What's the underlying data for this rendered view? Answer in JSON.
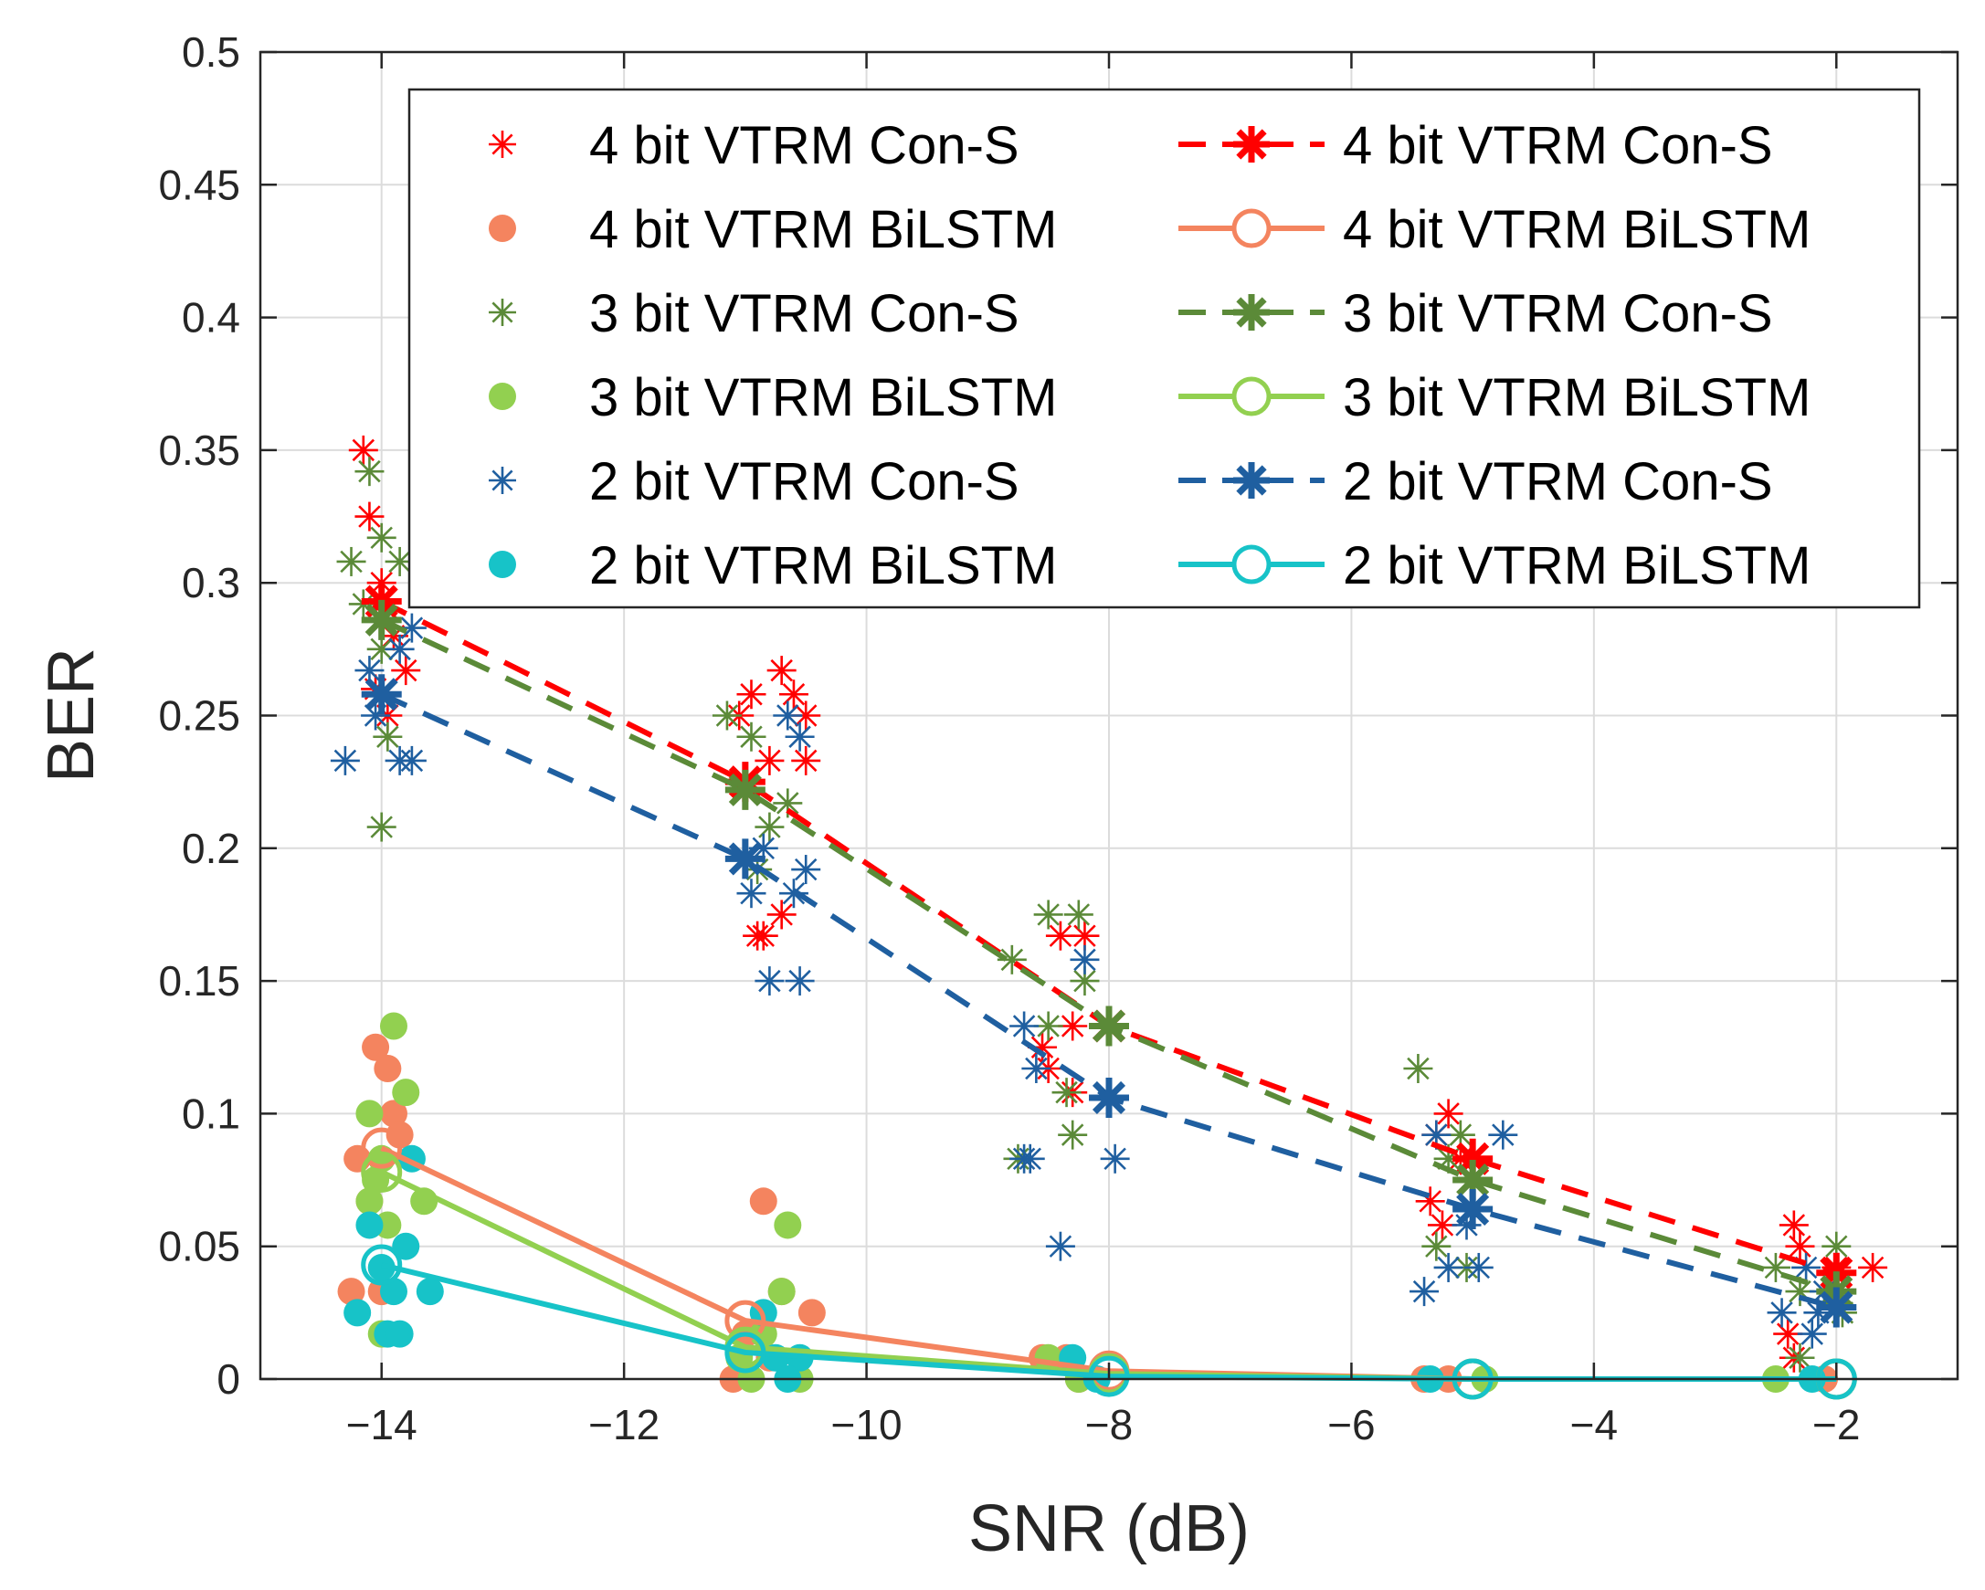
{
  "chart_data": {
    "type": "scatter",
    "title": "",
    "xlabel": "SNR (dB)",
    "ylabel": "BER",
    "xlim": [
      -15,
      -1
    ],
    "ylim": [
      0,
      0.5
    ],
    "grid": true,
    "legend_position": "top-right",
    "x_ticks": [
      -14,
      -12,
      -10,
      -8,
      -6,
      -4,
      -2
    ],
    "x_tick_labels": [
      "−14",
      "−12",
      "−10",
      "−8",
      "−6",
      "−4",
      "−2"
    ],
    "y_ticks": [
      0,
      0.05,
      0.1,
      0.15,
      0.2,
      0.25,
      0.3,
      0.35,
      0.4,
      0.45,
      0.5
    ],
    "y_tick_labels": [
      "0",
      "0.05",
      "0.1",
      "0.15",
      "0.2",
      "0.25",
      "0.3",
      "0.35",
      "0.4",
      "0.45",
      "0.5"
    ],
    "x": [
      -14,
      -11,
      -8,
      -5,
      -2
    ],
    "series": [
      {
        "name": "4 bit VTRM Con-S",
        "key": "con4",
        "color": "#ff0000",
        "marker": "asterisk",
        "style": "scatter",
        "points": [
          [
            -14.15,
            0.35
          ],
          [
            -14.1,
            0.325
          ],
          [
            -14.0,
            0.3
          ],
          [
            -13.95,
            0.29
          ],
          [
            -13.9,
            0.28
          ],
          [
            -13.8,
            0.267
          ],
          [
            -14.05,
            0.26
          ],
          [
            -13.95,
            0.25
          ],
          [
            -11.05,
            0.25
          ],
          [
            -10.95,
            0.258
          ],
          [
            -10.8,
            0.233
          ],
          [
            -10.7,
            0.267
          ],
          [
            -10.6,
            0.258
          ],
          [
            -10.5,
            0.25
          ],
          [
            -10.5,
            0.233
          ],
          [
            -10.9,
            0.167
          ],
          [
            -10.85,
            0.167
          ],
          [
            -10.7,
            0.175
          ],
          [
            -8.4,
            0.167
          ],
          [
            -8.3,
            0.133
          ],
          [
            -8.2,
            0.167
          ],
          [
            -8.55,
            0.125
          ],
          [
            -8.5,
            0.117
          ],
          [
            -8.3,
            0.108
          ],
          [
            -5.3,
            0.092
          ],
          [
            -5.2,
            0.1
          ],
          [
            -5.1,
            0.083
          ],
          [
            -5.35,
            0.067
          ],
          [
            -5.25,
            0.058
          ],
          [
            -2.35,
            0.058
          ],
          [
            -2.3,
            0.05
          ],
          [
            -2.0,
            0.042
          ],
          [
            -1.7,
            0.042
          ],
          [
            -2.4,
            0.017
          ],
          [
            -2.35,
            0.008
          ]
        ]
      },
      {
        "name": "4 bit VTRM BiLSTM",
        "key": "bi4",
        "color": "#f4845f",
        "marker": "dot",
        "style": "scatter",
        "points": [
          [
            -14.2,
            0.083
          ],
          [
            -14.05,
            0.125
          ],
          [
            -13.95,
            0.117
          ],
          [
            -13.9,
            0.1
          ],
          [
            -13.85,
            0.092
          ],
          [
            -14.1,
            0.067
          ],
          [
            -14.0,
            0.033
          ],
          [
            -14.25,
            0.033
          ],
          [
            -10.85,
            0.067
          ],
          [
            -10.45,
            0.025
          ],
          [
            -10.7,
            0.033
          ],
          [
            -11.0,
            0.017
          ],
          [
            -10.8,
            0.008
          ],
          [
            -11.1,
            0.0
          ],
          [
            -8.55,
            0.008
          ],
          [
            -8.35,
            0.008
          ],
          [
            -8.25,
            0.0
          ],
          [
            -5.4,
            0.0
          ],
          [
            -5.2,
            0.0
          ],
          [
            -2.1,
            0.0
          ]
        ]
      },
      {
        "name": "3 bit VTRM Con-S",
        "key": "con3",
        "color": "#5b8a38",
        "marker": "asterisk",
        "style": "scatter",
        "points": [
          [
            -14.1,
            0.342
          ],
          [
            -14.0,
            0.317
          ],
          [
            -13.85,
            0.308
          ],
          [
            -14.25,
            0.308
          ],
          [
            -14.15,
            0.292
          ],
          [
            -14.0,
            0.275
          ],
          [
            -13.95,
            0.242
          ],
          [
            -14.0,
            0.208
          ],
          [
            -11.15,
            0.25
          ],
          [
            -10.95,
            0.242
          ],
          [
            -10.65,
            0.217
          ],
          [
            -10.8,
            0.208
          ],
          [
            -10.9,
            0.192
          ],
          [
            -8.8,
            0.158
          ],
          [
            -8.5,
            0.175
          ],
          [
            -8.25,
            0.175
          ],
          [
            -8.2,
            0.15
          ],
          [
            -8.5,
            0.133
          ],
          [
            -8.35,
            0.108
          ],
          [
            -8.75,
            0.083
          ],
          [
            -8.3,
            0.092
          ],
          [
            -5.45,
            0.117
          ],
          [
            -5.1,
            0.092
          ],
          [
            -5.2,
            0.083
          ],
          [
            -5.3,
            0.05
          ],
          [
            -5.05,
            0.042
          ],
          [
            -2.5,
            0.042
          ],
          [
            -2.0,
            0.05
          ],
          [
            -2.3,
            0.033
          ],
          [
            -1.95,
            0.025
          ],
          [
            -2.3,
            0.008
          ]
        ]
      },
      {
        "name": "3 bit VTRM BiLSTM",
        "key": "bi3",
        "color": "#92d050",
        "marker": "dot",
        "style": "scatter",
        "points": [
          [
            -13.9,
            0.133
          ],
          [
            -14.1,
            0.1
          ],
          [
            -13.8,
            0.108
          ],
          [
            -14.0,
            0.083
          ],
          [
            -14.05,
            0.075
          ],
          [
            -14.1,
            0.067
          ],
          [
            -13.65,
            0.067
          ],
          [
            -13.95,
            0.058
          ],
          [
            -14.0,
            0.017
          ],
          [
            -10.65,
            0.058
          ],
          [
            -10.7,
            0.033
          ],
          [
            -10.85,
            0.017
          ],
          [
            -11.05,
            0.008
          ],
          [
            -10.95,
            0.0
          ],
          [
            -10.55,
            0.0
          ],
          [
            -8.5,
            0.008
          ],
          [
            -8.25,
            0.0
          ],
          [
            -4.9,
            0.0
          ],
          [
            -2.5,
            0.0
          ]
        ]
      },
      {
        "name": "2 bit VTRM Con-S",
        "key": "con2",
        "color": "#1f5fa0",
        "marker": "asterisk",
        "style": "scatter",
        "points": [
          [
            -14.3,
            0.233
          ],
          [
            -14.1,
            0.267
          ],
          [
            -14.0,
            0.258
          ],
          [
            -14.05,
            0.25
          ],
          [
            -13.85,
            0.275
          ],
          [
            -13.75,
            0.283
          ],
          [
            -13.85,
            0.233
          ],
          [
            -13.75,
            0.233
          ],
          [
            -10.85,
            0.2
          ],
          [
            -10.95,
            0.183
          ],
          [
            -10.65,
            0.25
          ],
          [
            -10.55,
            0.242
          ],
          [
            -10.5,
            0.192
          ],
          [
            -10.6,
            0.183
          ],
          [
            -10.8,
            0.15
          ],
          [
            -10.55,
            0.15
          ],
          [
            -8.7,
            0.133
          ],
          [
            -8.6,
            0.117
          ],
          [
            -8.2,
            0.158
          ],
          [
            -8.7,
            0.083
          ],
          [
            -8.65,
            0.083
          ],
          [
            -7.95,
            0.083
          ],
          [
            -8.4,
            0.05
          ],
          [
            -5.3,
            0.092
          ],
          [
            -4.75,
            0.092
          ],
          [
            -5.2,
            0.042
          ],
          [
            -5.4,
            0.033
          ],
          [
            -4.95,
            0.042
          ],
          [
            -5.05,
            0.058
          ],
          [
            -2.45,
            0.025
          ],
          [
            -2.25,
            0.042
          ],
          [
            -2.15,
            0.025
          ],
          [
            -2.2,
            0.017
          ],
          [
            -2.1,
            0.033
          ]
        ]
      },
      {
        "name": "2 bit VTRM BiLSTM",
        "key": "bi2",
        "color": "#17c3c8",
        "marker": "dot",
        "style": "scatter",
        "points": [
          [
            -14.1,
            0.058
          ],
          [
            -13.75,
            0.083
          ],
          [
            -13.8,
            0.05
          ],
          [
            -14.0,
            0.042
          ],
          [
            -13.9,
            0.033
          ],
          [
            -13.6,
            0.033
          ],
          [
            -14.2,
            0.025
          ],
          [
            -13.95,
            0.017
          ],
          [
            -13.85,
            0.017
          ],
          [
            -10.85,
            0.025
          ],
          [
            -10.75,
            0.008
          ],
          [
            -10.55,
            0.008
          ],
          [
            -10.65,
            0.0
          ],
          [
            -8.3,
            0.008
          ],
          [
            -8.1,
            0.0
          ],
          [
            -5.35,
            0.0
          ],
          [
            -2.2,
            0.0
          ]
        ]
      },
      {
        "name": "4 bit VTRM Con-S",
        "key": "con4m",
        "color": "#ff0000",
        "marker": "asterisk",
        "style": "dashed",
        "points": [
          [
            -14,
            0.293
          ],
          [
            -11,
            0.225
          ],
          [
            -8,
            0.133
          ],
          [
            -5,
            0.083
          ],
          [
            -2,
            0.04
          ]
        ]
      },
      {
        "name": "4 bit VTRM BiLSTM",
        "key": "bi4m",
        "color": "#f4845f",
        "marker": "circle",
        "style": "solid",
        "points": [
          [
            -14,
            0.087
          ],
          [
            -11,
            0.022
          ],
          [
            -8,
            0.003
          ],
          [
            -5,
            0.0
          ],
          [
            -2,
            0.0
          ]
        ]
      },
      {
        "name": "3 bit VTRM Con-S",
        "key": "con3m",
        "color": "#5b8a38",
        "marker": "asterisk",
        "style": "dashed",
        "points": [
          [
            -14,
            0.286
          ],
          [
            -11,
            0.222
          ],
          [
            -8,
            0.133
          ],
          [
            -5,
            0.075
          ],
          [
            -2,
            0.033
          ]
        ]
      },
      {
        "name": "3 bit VTRM BiLSTM",
        "key": "bi3m",
        "color": "#92d050",
        "marker": "circle",
        "style": "solid",
        "points": [
          [
            -14,
            0.078
          ],
          [
            -11,
            0.012
          ],
          [
            -8,
            0.002
          ],
          [
            -5,
            0.0
          ],
          [
            -2,
            0.0
          ]
        ]
      },
      {
        "name": "2 bit VTRM Con-S",
        "key": "con2m",
        "color": "#1f5fa0",
        "marker": "asterisk",
        "style": "dashed",
        "points": [
          [
            -14,
            0.258
          ],
          [
            -11,
            0.196
          ],
          [
            -8,
            0.106
          ],
          [
            -5,
            0.064
          ],
          [
            -2,
            0.027
          ]
        ]
      },
      {
        "name": "2 bit VTRM BiLSTM",
        "key": "bi2m",
        "color": "#17c3c8",
        "marker": "circle",
        "style": "solid",
        "points": [
          [
            -14,
            0.043
          ],
          [
            -11,
            0.01
          ],
          [
            -8,
            0.001
          ],
          [
            -5,
            0.0
          ],
          [
            -2,
            0.0
          ]
        ]
      }
    ],
    "legend": {
      "entries": [
        "4 bit VTRM Con-S",
        "4 bit VTRM BiLSTM",
        "3 bit VTRM Con-S",
        "3 bit VTRM BiLSTM",
        "2 bit VTRM Con-S",
        "2 bit VTRM BiLSTM",
        "4 bit VTRM Con-S",
        "4 bit VTRM BiLSTM",
        "3 bit VTRM Con-S",
        "3 bit VTRM BiLSTM",
        "2 bit VTRM Con-S",
        "2 bit VTRM BiLSTM"
      ]
    }
  }
}
